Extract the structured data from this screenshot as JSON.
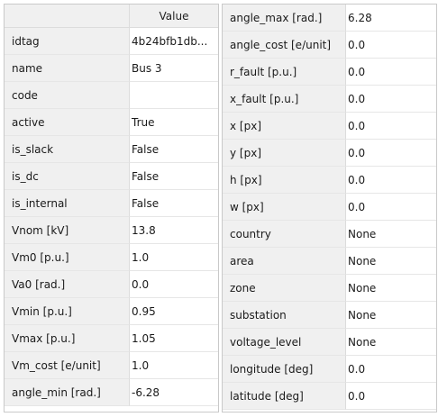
{
  "left_table": {
    "header_value": "Value",
    "rows": [
      {
        "name": "idtag",
        "value": "4b24bfb1db..."
      },
      {
        "name": "name",
        "value": "Bus 3"
      },
      {
        "name": "code",
        "value": ""
      },
      {
        "name": "active",
        "value": "True"
      },
      {
        "name": "is_slack",
        "value": "False"
      },
      {
        "name": "is_dc",
        "value": "False"
      },
      {
        "name": "is_internal",
        "value": "False"
      },
      {
        "name": "Vnom [kV]",
        "value": "13.8"
      },
      {
        "name": "Vm0 [p.u.]",
        "value": "1.0"
      },
      {
        "name": "Va0 [rad.]",
        "value": "0.0"
      },
      {
        "name": "Vmin [p.u.]",
        "value": "0.95"
      },
      {
        "name": "Vmax [p.u.]",
        "value": "1.05"
      },
      {
        "name": "Vm_cost [e/unit]",
        "value": "1.0"
      },
      {
        "name": "angle_min [rad.]",
        "value": "-6.28"
      }
    ]
  },
  "right_table": {
    "rows": [
      {
        "name": "angle_max [rad.]",
        "value": "6.28"
      },
      {
        "name": "angle_cost [e/unit]",
        "value": "0.0"
      },
      {
        "name": "r_fault [p.u.]",
        "value": "0.0"
      },
      {
        "name": "x_fault [p.u.]",
        "value": "0.0"
      },
      {
        "name": "x [px]",
        "value": "0.0"
      },
      {
        "name": "y [px]",
        "value": "0.0"
      },
      {
        "name": "h [px]",
        "value": "0.0"
      },
      {
        "name": "w [px]",
        "value": "0.0"
      },
      {
        "name": "country",
        "value": "None"
      },
      {
        "name": "area",
        "value": "None"
      },
      {
        "name": "zone",
        "value": "None"
      },
      {
        "name": "substation",
        "value": "None"
      },
      {
        "name": "voltage_level",
        "value": "None"
      },
      {
        "name": "longitude [deg]",
        "value": "0.0"
      },
      {
        "name": "latitude [deg]",
        "value": "0.0"
      }
    ]
  }
}
